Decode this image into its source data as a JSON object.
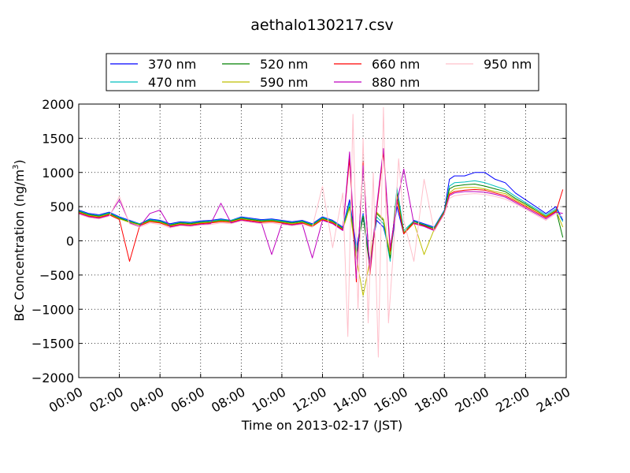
{
  "chart_data": {
    "type": "line",
    "title": "aethalo130217.csv",
    "xlabel": "Time on 2013-02-17 (JST)",
    "ylabel": "BC Concentration (ng/m³)",
    "ylabel_parts": {
      "main": "BC Concentration (ng/m",
      "sup": "3",
      "close": ")"
    },
    "ylim": [
      -2000,
      2000
    ],
    "xlim": [
      "00:00",
      "24:00"
    ],
    "yticks": [
      2000,
      1500,
      1000,
      500,
      0,
      -500,
      -1000,
      -1500,
      -2000
    ],
    "ytick_labels": [
      "2000",
      "1500",
      "1000",
      "500",
      "0",
      "−500",
      "−1000",
      "−1500",
      "−2000"
    ],
    "xticks": [
      "00:00",
      "02:00",
      "04:00",
      "06:00",
      "08:00",
      "10:00",
      "12:00",
      "14:00",
      "16:00",
      "18:00",
      "20:00",
      "22:00",
      "24:00"
    ],
    "grid": true,
    "legend_position": "top",
    "series": [
      {
        "name": "370 nm",
        "color": "#0000ff",
        "x": [
          "00:00",
          "00:30",
          "01:00",
          "01:30",
          "02:00",
          "02:30",
          "03:00",
          "03:30",
          "04:00",
          "04:30",
          "05:00",
          "05:30",
          "06:00",
          "06:30",
          "07:00",
          "07:30",
          "08:00",
          "08:30",
          "09:00",
          "09:30",
          "10:00",
          "10:30",
          "11:00",
          "11:30",
          "12:00",
          "12:30",
          "13:00",
          "13:20",
          "13:40",
          "14:00",
          "14:20",
          "14:40",
          "15:00",
          "15:20",
          "15:40",
          "16:00",
          "16:30",
          "17:00",
          "17:30",
          "18:00",
          "18:15",
          "18:30",
          "19:00",
          "19:30",
          "20:00",
          "20:30",
          "21:00",
          "21:30",
          "22:00",
          "22:30",
          "23:00",
          "23:30",
          "23:50"
        ],
        "values": [
          450,
          400,
          380,
          420,
          350,
          300,
          250,
          320,
          300,
          250,
          280,
          270,
          290,
          300,
          320,
          300,
          350,
          330,
          310,
          320,
          300,
          280,
          300,
          250,
          350,
          300,
          200,
          600,
          -100,
          400,
          -300,
          300,
          200,
          -200,
          500,
          100,
          300,
          250,
          200,
          450,
          900,
          950,
          950,
          1000,
          1000,
          900,
          850,
          700,
          600,
          500,
          400,
          500,
          300
        ]
      },
      {
        "name": "470 nm",
        "color": "#00bfbf",
        "x": [
          "00:00",
          "00:30",
          "01:00",
          "01:30",
          "02:00",
          "02:30",
          "03:00",
          "03:30",
          "04:00",
          "04:30",
          "05:00",
          "05:30",
          "06:00",
          "06:30",
          "07:00",
          "07:30",
          "08:00",
          "08:30",
          "09:00",
          "09:30",
          "10:00",
          "10:30",
          "11:00",
          "11:30",
          "12:00",
          "12:30",
          "13:00",
          "13:20",
          "13:40",
          "14:00",
          "14:20",
          "14:40",
          "15:00",
          "15:20",
          "15:40",
          "16:00",
          "16:30",
          "17:00",
          "17:30",
          "18:00",
          "18:15",
          "18:30",
          "19:00",
          "19:30",
          "20:00",
          "20:30",
          "21:00",
          "21:30",
          "22:00",
          "22:30",
          "23:00",
          "23:30",
          "23:50"
        ],
        "values": [
          440,
          390,
          370,
          410,
          340,
          290,
          250,
          310,
          290,
          240,
          270,
          260,
          280,
          290,
          310,
          300,
          340,
          320,
          300,
          310,
          290,
          270,
          290,
          240,
          340,
          290,
          190,
          550,
          -150,
          380,
          -350,
          350,
          250,
          -300,
          780,
          150,
          290,
          240,
          190,
          440,
          800,
          850,
          860,
          880,
          850,
          800,
          750,
          650,
          560,
          470,
          380,
          470,
          280
        ]
      },
      {
        "name": "520 nm",
        "color": "#008000",
        "x": [
          "00:00",
          "00:30",
          "01:00",
          "01:30",
          "02:00",
          "02:30",
          "03:00",
          "03:30",
          "04:00",
          "04:30",
          "05:00",
          "05:30",
          "06:00",
          "06:30",
          "07:00",
          "07:30",
          "08:00",
          "08:30",
          "09:00",
          "09:30",
          "10:00",
          "10:30",
          "11:00",
          "11:30",
          "12:00",
          "12:30",
          "13:00",
          "13:20",
          "13:40",
          "14:00",
          "14:20",
          "14:40",
          "15:00",
          "15:20",
          "15:40",
          "16:00",
          "16:30",
          "17:00",
          "17:30",
          "18:00",
          "18:15",
          "18:30",
          "19:00",
          "19:30",
          "20:00",
          "20:30",
          "21:00",
          "21:30",
          "22:00",
          "22:30",
          "23:00",
          "23:30",
          "23:50"
        ],
        "values": [
          430,
          380,
          360,
          400,
          330,
          280,
          240,
          300,
          280,
          230,
          260,
          250,
          270,
          280,
          300,
          290,
          330,
          310,
          290,
          300,
          280,
          260,
          280,
          230,
          330,
          280,
          180,
          500,
          -200,
          360,
          -400,
          400,
          300,
          -250,
          700,
          120,
          280,
          230,
          180,
          430,
          760,
          800,
          820,
          830,
          800,
          760,
          720,
          620,
          540,
          450,
          360,
          450,
          50
        ]
      },
      {
        "name": "590 nm",
        "color": "#bfbf00",
        "x": [
          "00:00",
          "00:30",
          "01:00",
          "01:30",
          "02:00",
          "02:30",
          "03:00",
          "03:30",
          "04:00",
          "04:30",
          "05:00",
          "05:30",
          "06:00",
          "06:30",
          "07:00",
          "07:30",
          "08:00",
          "08:30",
          "09:00",
          "09:30",
          "10:00",
          "10:30",
          "11:00",
          "11:30",
          "12:00",
          "12:30",
          "13:00",
          "13:20",
          "13:40",
          "14:00",
          "14:20",
          "14:40",
          "15:00",
          "15:20",
          "15:40",
          "16:00",
          "16:30",
          "17:00",
          "17:30",
          "18:00",
          "18:15",
          "18:30",
          "19:00",
          "19:30",
          "20:00",
          "20:30",
          "21:00",
          "21:30",
          "22:00",
          "22:30",
          "23:00",
          "23:30",
          "23:50"
        ],
        "values": [
          420,
          370,
          350,
          390,
          320,
          270,
          230,
          290,
          270,
          220,
          250,
          240,
          260,
          270,
          290,
          280,
          320,
          300,
          280,
          290,
          270,
          250,
          270,
          220,
          320,
          270,
          170,
          480,
          -250,
          -800,
          -300,
          420,
          320,
          -200,
          650,
          110,
          270,
          -200,
          170,
          420,
          700,
          760,
          780,
          780,
          760,
          720,
          690,
          600,
          520,
          440,
          350,
          440,
          200
        ]
      },
      {
        "name": "660 nm",
        "color": "#ff0000",
        "x": [
          "00:00",
          "00:30",
          "01:00",
          "01:30",
          "02:00",
          "02:30",
          "03:00",
          "03:30",
          "04:00",
          "04:30",
          "05:00",
          "05:30",
          "06:00",
          "06:30",
          "07:00",
          "07:30",
          "08:00",
          "08:30",
          "09:00",
          "09:30",
          "10:00",
          "10:30",
          "11:00",
          "11:30",
          "12:00",
          "12:30",
          "13:00",
          "13:20",
          "13:40",
          "14:00",
          "14:20",
          "14:40",
          "15:00",
          "15:20",
          "15:40",
          "16:00",
          "16:30",
          "17:00",
          "17:30",
          "18:00",
          "18:15",
          "18:30",
          "19:00",
          "19:30",
          "20:00",
          "20:30",
          "21:00",
          "21:30",
          "22:00",
          "22:30",
          "23:00",
          "23:30",
          "23:50"
        ],
        "values": [
          410,
          360,
          340,
          380,
          310,
          -300,
          220,
          280,
          260,
          210,
          240,
          230,
          250,
          260,
          280,
          270,
          310,
          290,
          270,
          280,
          260,
          240,
          260,
          210,
          310,
          260,
          160,
          1200,
          -600,
          1150,
          -500,
          450,
          1300,
          -150,
          600,
          100,
          260,
          220,
          160,
          410,
          680,
          720,
          740,
          750,
          740,
          700,
          660,
          580,
          500,
          420,
          340,
          430,
          750
        ]
      },
      {
        "name": "880 nm",
        "color": "#bf00bf",
        "x": [
          "00:00",
          "00:30",
          "01:00",
          "01:30",
          "02:00",
          "02:30",
          "03:00",
          "03:30",
          "04:00",
          "04:30",
          "05:00",
          "05:30",
          "06:00",
          "06:30",
          "07:00",
          "07:30",
          "08:00",
          "08:30",
          "09:00",
          "09:30",
          "10:00",
          "10:30",
          "11:00",
          "11:30",
          "12:00",
          "12:30",
          "13:00",
          "13:20",
          "13:40",
          "14:00",
          "14:20",
          "14:40",
          "15:00",
          "15:20",
          "15:40",
          "16:00",
          "16:30",
          "17:00",
          "17:30",
          "18:00",
          "18:15",
          "18:30",
          "19:00",
          "19:30",
          "20:00",
          "20:30",
          "21:00",
          "21:30",
          "22:00",
          "22:30",
          "23:00",
          "23:30",
          "23:50"
        ],
        "values": [
          400,
          350,
          330,
          370,
          600,
          260,
          210,
          400,
          450,
          200,
          230,
          220,
          240,
          250,
          550,
          260,
          300,
          280,
          260,
          -200,
          250,
          230,
          250,
          -250,
          300,
          250,
          150,
          1300,
          -550,
          1100,
          -450,
          500,
          1350,
          -100,
          550,
          1050,
          250,
          210,
          150,
          400,
          660,
          700,
          720,
          720,
          710,
          680,
          640,
          560,
          480,
          400,
          320,
          420,
          400
        ]
      },
      {
        "name": "950 nm",
        "color": "#ffc0cb",
        "x": [
          "00:00",
          "00:30",
          "01:00",
          "01:30",
          "02:00",
          "02:30",
          "03:00",
          "03:30",
          "04:00",
          "04:30",
          "05:00",
          "05:30",
          "06:00",
          "06:30",
          "07:00",
          "07:30",
          "08:00",
          "08:30",
          "09:00",
          "09:30",
          "10:00",
          "10:30",
          "11:00",
          "11:30",
          "12:00",
          "12:30",
          "13:00",
          "13:15",
          "13:30",
          "13:45",
          "14:00",
          "14:15",
          "14:30",
          "14:45",
          "15:00",
          "15:15",
          "15:30",
          "15:45",
          "16:00",
          "16:30",
          "17:00",
          "17:30",
          "18:00",
          "18:15",
          "18:30",
          "19:00",
          "19:30",
          "20:00",
          "20:30",
          "21:00",
          "21:30",
          "22:00",
          "22:30",
          "23:00",
          "23:30",
          "23:50"
        ],
        "values": [
          390,
          340,
          320,
          360,
          650,
          250,
          200,
          260,
          240,
          190,
          220,
          210,
          230,
          240,
          260,
          250,
          290,
          270,
          250,
          260,
          240,
          220,
          240,
          200,
          800,
          -100,
          700,
          -1400,
          1850,
          -1000,
          1500,
          -1200,
          1000,
          -1700,
          1950,
          -1200,
          -100,
          1200,
          300,
          -300,
          900,
          140,
          390,
          620,
          660,
          680,
          690,
          680,
          650,
          610,
          540,
          460,
          380,
          300,
          400,
          350
        ]
      }
    ]
  }
}
